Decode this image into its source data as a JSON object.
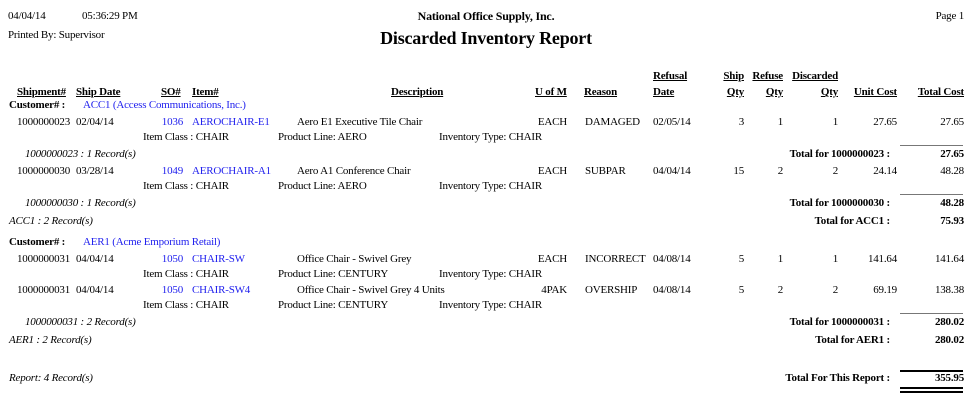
{
  "header": {
    "date": "04/04/14",
    "time": "05:36:29 PM",
    "printed_by": "Printed By: Supervisor",
    "company": "National Office Supply, Inc.",
    "title": "Discarded Inventory Report",
    "page": "Page 1"
  },
  "columns": {
    "shipment": "Shipment#",
    "ship_date": "Ship Date",
    "so": "SO#",
    "item": "Item#",
    "description": "Description",
    "uofm": "U of M",
    "reason": "Reason",
    "refusal_date_1": "Refusal",
    "refusal_date_2": "Date",
    "ship_qty_1": "Ship",
    "ship_qty_2": "Qty",
    "refuse_qty_1": "Refuse",
    "refuse_qty_2": "Qty",
    "discarded_qty_1": "Discarded",
    "discarded_qty_2": "Qty",
    "unit_cost": "Unit Cost",
    "total_cost": "Total Cost"
  },
  "customer_label": "Customer# :",
  "customers": [
    {
      "name": "ACC1 (Access Communications, Inc.)",
      "records": "ACC1 : 2 Record(s)",
      "total_label": "Total for ACC1 :",
      "total": "75.93",
      "shipments": [
        {
          "records": "1000000023 : 1 Record(s)",
          "total_label": "Total for 1000000023 :",
          "total": "27.65",
          "items": [
            {
              "shipment": "1000000023",
              "ship_date": "02/04/14",
              "so": "1036",
              "item": "AEROCHAIR-E1",
              "description": "Aero E1 Executive Tile Chair",
              "uofm": "EACH",
              "reason": "DAMAGED",
              "refusal_date": "02/05/14",
              "ship_qty": "3",
              "refuse_qty": "1",
              "discarded_qty": "1",
              "unit_cost": "27.65",
              "total_cost": "27.65",
              "item_class": "Item Class : CHAIR",
              "product_line": "Product Line: AERO",
              "inventory_type": "Inventory Type: CHAIR"
            }
          ]
        },
        {
          "records": "1000000030 : 1 Record(s)",
          "total_label": "Total for 1000000030 :",
          "total": "48.28",
          "items": [
            {
              "shipment": "1000000030",
              "ship_date": "03/28/14",
              "so": "1049",
              "item": "AEROCHAIR-A1",
              "description": "Aero A1 Conference Chair",
              "uofm": "EACH",
              "reason": "SUBPAR",
              "refusal_date": "04/04/14",
              "ship_qty": "15",
              "refuse_qty": "2",
              "discarded_qty": "2",
              "unit_cost": "24.14",
              "total_cost": "48.28",
              "item_class": "Item Class : CHAIR",
              "product_line": "Product Line: AERO",
              "inventory_type": "Inventory Type: CHAIR"
            }
          ]
        }
      ]
    },
    {
      "name": "AER1 (Acme Emporium Retail)",
      "records": "AER1 : 2 Record(s)",
      "total_label": "Total for AER1 :",
      "total": "280.02",
      "shipments": [
        {
          "records": "1000000031 : 2 Record(s)",
          "total_label": "Total for 1000000031 :",
          "total": "280.02",
          "items": [
            {
              "shipment": "1000000031",
              "ship_date": "04/04/14",
              "so": "1050",
              "item": "CHAIR-SW",
              "description": "Office Chair - Swivel Grey",
              "uofm": "EACH",
              "reason": "INCORRECT",
              "refusal_date": "04/08/14",
              "ship_qty": "5",
              "refuse_qty": "1",
              "discarded_qty": "1",
              "unit_cost": "141.64",
              "total_cost": "141.64",
              "item_class": "Item Class : CHAIR",
              "product_line": "Product Line: CENTURY",
              "inventory_type": "Inventory Type: CHAIR"
            },
            {
              "shipment": "1000000031",
              "ship_date": "04/04/14",
              "so": "1050",
              "item": "CHAIR-SW4",
              "description": "Office Chair - Swivel Grey 4 Units",
              "uofm": "4PAK",
              "reason": "OVERSHIP",
              "refusal_date": "04/08/14",
              "ship_qty": "5",
              "refuse_qty": "2",
              "discarded_qty": "2",
              "unit_cost": "69.19",
              "total_cost": "138.38",
              "item_class": "Item Class : CHAIR",
              "product_line": "Product Line: CENTURY",
              "inventory_type": "Inventory Type: CHAIR"
            }
          ]
        }
      ]
    }
  ],
  "report": {
    "records": "Report: 4 Record(s)",
    "total_label": "Total For This Report :",
    "total": "355.95"
  },
  "colors": {
    "link": "#2222ee",
    "text": "#000000"
  }
}
